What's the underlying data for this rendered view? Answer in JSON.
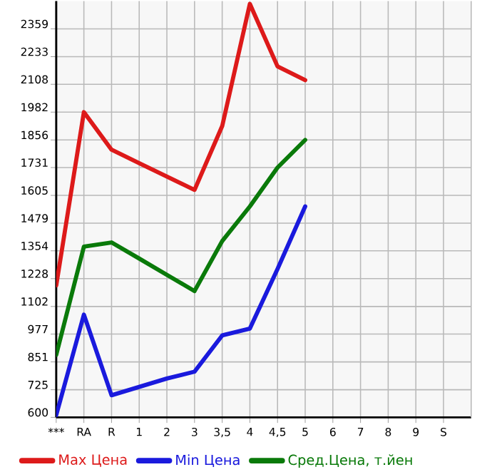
{
  "chart_data": {
    "type": "line",
    "categories": [
      "***",
      "RA",
      "R",
      "1",
      "2",
      "3",
      "3,5",
      "4",
      "4,5",
      "5",
      "6",
      "7",
      "8",
      "9",
      "S"
    ],
    "series": [
      {
        "name": "Max Цена",
        "color": "#dd1a1a",
        "values": [
          1197,
          1982,
          1812,
          1751,
          1690,
          1630,
          1919,
          2472,
          2189,
          2127,
          null,
          null,
          null,
          null,
          null
        ]
      },
      {
        "name": "Min Цена",
        "color": "#1a1add",
        "values": [
          610,
          1065,
          700,
          738,
          776,
          807,
          971,
          1002,
          1272,
          1555,
          null,
          null,
          null,
          null,
          null
        ]
      },
      {
        "name": "Сред.Цена, т.йен",
        "color": "#0a7a0a",
        "values": [
          883,
          1373,
          1392,
          1319,
          1245,
          1172,
          1398,
          1555,
          1731,
          1856,
          null,
          null,
          null,
          null,
          null
        ]
      }
    ],
    "ylim": [
      600,
      2485
    ],
    "yticks": [
      600,
      725,
      851,
      977,
      1102,
      1228,
      1354,
      1479,
      1605,
      1731,
      1856,
      1982,
      2108,
      2233,
      2359
    ],
    "grid": true,
    "legend": "bottom",
    "marker": "none",
    "line_style": "solid"
  }
}
